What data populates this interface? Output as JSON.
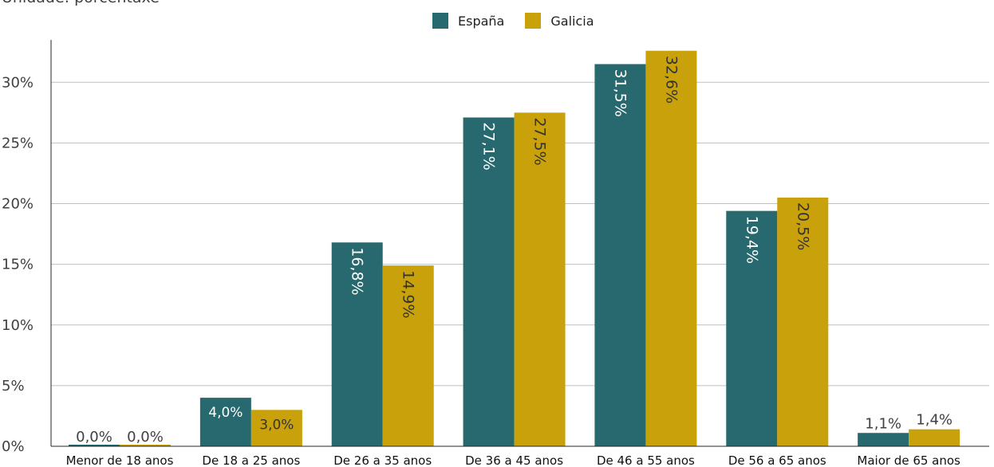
{
  "subtitle": "Unidade: porcentaxe",
  "colors": {
    "espana": "#27696e",
    "galicia": "#c9a10a",
    "grid": "#bfbfbf",
    "axis": "#262626"
  },
  "chart_data": {
    "type": "bar",
    "categories": [
      "Menor de 18 anos",
      "De 18 a 25 anos",
      "De 26 a 35 anos",
      "De 36 a 45 anos",
      "De 46 a 55 anos",
      "De 56 a 65 anos",
      "Maior de 65 anos"
    ],
    "series": [
      {
        "name": "España",
        "values": [
          0.0,
          4.0,
          16.8,
          27.1,
          31.5,
          19.4,
          1.1
        ],
        "labels": [
          "0,0%",
          "4,0%",
          "16,8%",
          "27,1%",
          "31,5%",
          "19,4%",
          "1,1%"
        ]
      },
      {
        "name": "Galicia",
        "values": [
          0.0,
          3.0,
          14.9,
          27.5,
          32.6,
          20.5,
          1.4
        ],
        "labels": [
          "0,0%",
          "3,0%",
          "14,9%",
          "27,5%",
          "32,6%",
          "20,5%",
          "1,4%"
        ]
      }
    ],
    "yticks": [
      0,
      5,
      10,
      15,
      20,
      25,
      30
    ],
    "ytick_labels": [
      "0%",
      "5%",
      "10%",
      "15%",
      "20%",
      "25%",
      "30%"
    ],
    "ylim": [
      0,
      33.5
    ],
    "grid": true,
    "legend": "top-center"
  }
}
